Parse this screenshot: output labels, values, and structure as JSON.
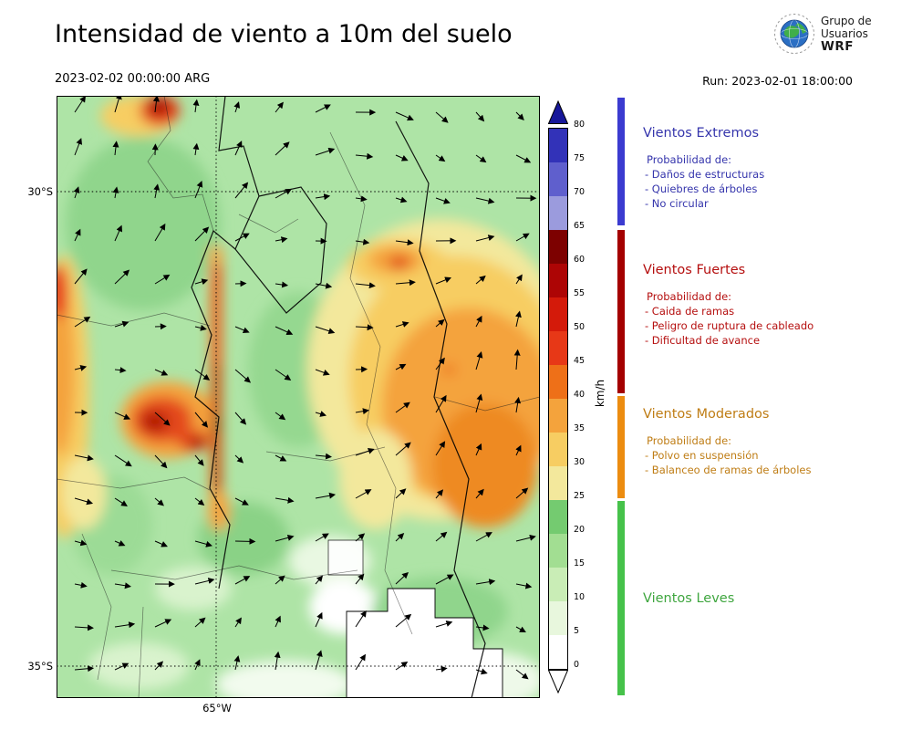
{
  "header": {
    "title": "Intensidad de viento a 10m del suelo",
    "valid_time": "2023-02-02 00:00:00 ARG",
    "run_label": "Run: 2023-02-01 18:00:00",
    "logo": {
      "line1": "Grupo de",
      "line2": "Usuarios",
      "line3": "WRF"
    }
  },
  "map": {
    "lat_labels": [
      "30°S",
      "35°S"
    ],
    "lon_label": "65°W"
  },
  "colorbar": {
    "unit": "km/h",
    "min": 0,
    "max": 80,
    "ticks": [
      0,
      5,
      10,
      15,
      20,
      25,
      30,
      35,
      40,
      45,
      50,
      55,
      60,
      65,
      70,
      75,
      80
    ],
    "extend_over_color": "#17179a",
    "extend_under_color": "#ffffff",
    "segments": [
      {
        "from": 0,
        "to": 5,
        "color": "#ffffff"
      },
      {
        "from": 5,
        "to": 10,
        "color": "#e8f7dd"
      },
      {
        "from": 10,
        "to": 15,
        "color": "#c9edb6"
      },
      {
        "from": 15,
        "to": 20,
        "color": "#a2de92"
      },
      {
        "from": 20,
        "to": 25,
        "color": "#74cb70"
      },
      {
        "from": 25,
        "to": 30,
        "color": "#f3e89c"
      },
      {
        "from": 30,
        "to": 35,
        "color": "#f7cd62"
      },
      {
        "from": 35,
        "to": 40,
        "color": "#f4a33c"
      },
      {
        "from": 40,
        "to": 45,
        "color": "#ee7018"
      },
      {
        "from": 45,
        "to": 50,
        "color": "#e73817"
      },
      {
        "from": 50,
        "to": 55,
        "color": "#d41a0a"
      },
      {
        "from": 55,
        "to": 60,
        "color": "#ad0505"
      },
      {
        "from": 60,
        "to": 65,
        "color": "#7d0100"
      },
      {
        "from": 65,
        "to": 70,
        "color": "#9b9bdd"
      },
      {
        "from": 70,
        "to": 75,
        "color": "#5f5fcd"
      },
      {
        "from": 75,
        "to": 80,
        "color": "#3232b8"
      }
    ]
  },
  "legend": {
    "sections": [
      {
        "title": "Vientos Extremos",
        "title_color": "#3535ac",
        "bar_color": "#3b3bd0",
        "prob_header": "Probabilidad de:",
        "items": [
          "- Daños de estructuras",
          "- Quiebres de árboles",
          "- No circular"
        ]
      },
      {
        "title": "Vientos Fuertes",
        "title_color": "#b50f0f",
        "bar_color": "#a40000",
        "prob_header": "Probabilidad de:",
        "items": [
          "- Caida de ramas",
          "- Peligro de ruptura de cableado",
          "- Dificultad de avance"
        ]
      },
      {
        "title": "Vientos Moderados",
        "title_color": "#bf7d15",
        "bar_color": "#ec8c10",
        "prob_header": "Probabilidad de:",
        "items": [
          "- Polvo en suspensión",
          "- Balanceo de ramas de árboles"
        ]
      },
      {
        "title": "Vientos Leves",
        "title_color": "#3fa63f",
        "bar_color": "#46c24a",
        "prob_header": "",
        "items": []
      }
    ]
  },
  "chart_data": {
    "type": "heatmap",
    "title": "Intensidad de viento a 10m del suelo",
    "valid_time": "2023-02-02 00:00:00 ARG",
    "run": "2023-02-01 18:00:00",
    "field": "wind speed at 10 m with wind direction arrows",
    "x_tick_labels": [
      "65°W"
    ],
    "y_tick_labels": [
      "30°S",
      "35°S"
    ],
    "colorbar": {
      "unit": "km/h",
      "range": [
        0,
        80
      ],
      "tick_step": 5,
      "extend": "both"
    },
    "categories": [
      {
        "label": "Vientos Leves",
        "range_kmh": [
          0,
          25
        ],
        "color": "#46c24a"
      },
      {
        "label": "Vientos Moderados",
        "range_kmh": [
          25,
          40
        ],
        "color": "#ec8c10"
      },
      {
        "label": "Vientos Fuertes",
        "range_kmh": [
          40,
          65
        ],
        "color": "#a40000"
      },
      {
        "label": "Vientos Extremos",
        "range_kmh": [
          65,
          80
        ],
        "color": "#3b3bd0"
      }
    ],
    "legend_position": "right",
    "grid": "dotted lat/lon lines"
  }
}
